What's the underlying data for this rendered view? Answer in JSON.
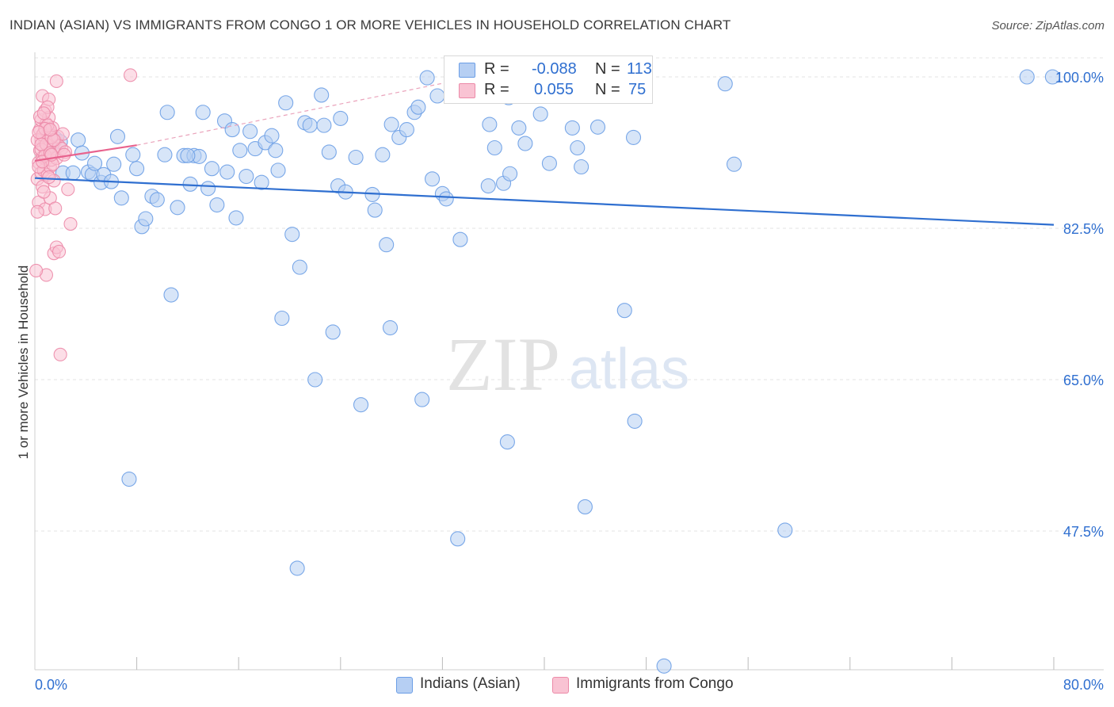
{
  "title": "INDIAN (ASIAN) VS IMMIGRANTS FROM CONGO 1 OR MORE VEHICLES IN HOUSEHOLD CORRELATION CHART",
  "source": "Source: ZipAtlas.com",
  "watermark": {
    "zip": "ZIP",
    "atlas": "atlas"
  },
  "legend": {
    "r_label": "R =",
    "n_label": "N =",
    "rows": [
      {
        "r": "-0.088",
        "n": "113",
        "fill": "#b6cff3",
        "stroke": "#6b9ee6"
      },
      {
        "r": "0.055",
        "n": "75",
        "fill": "#f9c3d3",
        "stroke": "#ec8aa8"
      }
    ]
  },
  "chart_data": {
    "type": "scatter",
    "title": "INDIAN (ASIAN) VS IMMIGRANTS FROM CONGO 1 OR MORE VEHICLES IN HOUSEHOLD CORRELATION CHART",
    "xlabel": "",
    "ylabel": "1 or more Vehicles in Household",
    "xlim": [
      0,
      80
    ],
    "ylim": [
      30.5,
      102.2
    ],
    "x_tick_labels": [
      {
        "value": 0,
        "label": "0.0%"
      },
      {
        "value": 80,
        "label": "80.0%"
      }
    ],
    "y_tick_labels": [
      {
        "value": 100,
        "label": "100.0%"
      },
      {
        "value": 82.5,
        "label": "82.5%"
      },
      {
        "value": 65,
        "label": "65.0%"
      },
      {
        "value": 47.5,
        "label": "47.5%"
      }
    ],
    "grid": true,
    "series": [
      {
        "name": "Indians (Asian)",
        "color": "#6b9ee6",
        "fill": "#b6cff3",
        "trend": {
          "x": [
            0,
            80
          ],
          "y": [
            88.3,
            82.9
          ],
          "color": "#2f6fd0",
          "dashed_extension": false
        },
        "points": [
          [
            1.0,
            93.3
          ],
          [
            1.3,
            92.1
          ],
          [
            1.6,
            92.9
          ],
          [
            2.0,
            92.5
          ],
          [
            2.2,
            88.9
          ],
          [
            3.0,
            88.9
          ],
          [
            3.4,
            92.7
          ],
          [
            3.7,
            91.2
          ],
          [
            4.2,
            89.0
          ],
          [
            4.5,
            88.7
          ],
          [
            4.7,
            90.0
          ],
          [
            5.2,
            87.8
          ],
          [
            5.4,
            88.7
          ],
          [
            6.2,
            89.9
          ],
          [
            6.5,
            93.1
          ],
          [
            6.8,
            86.0
          ],
          [
            7.7,
            91.0
          ],
          [
            8.0,
            89.4
          ],
          [
            8.4,
            82.7
          ],
          [
            8.7,
            83.6
          ],
          [
            9.2,
            86.2
          ],
          [
            9.6,
            85.8
          ],
          [
            10.2,
            91.0
          ],
          [
            10.4,
            95.9
          ],
          [
            10.7,
            74.8
          ],
          [
            11.2,
            84.9
          ],
          [
            11.7,
            90.9
          ],
          [
            12.2,
            87.6
          ],
          [
            12.5,
            90.9
          ],
          [
            12.9,
            90.8
          ],
          [
            13.2,
            95.9
          ],
          [
            13.6,
            87.1
          ],
          [
            13.9,
            89.4
          ],
          [
            14.3,
            85.2
          ],
          [
            14.9,
            94.9
          ],
          [
            15.1,
            89.0
          ],
          [
            15.5,
            93.9
          ],
          [
            15.8,
            83.7
          ],
          [
            16.1,
            91.5
          ],
          [
            16.6,
            88.5
          ],
          [
            16.9,
            93.7
          ],
          [
            17.3,
            91.7
          ],
          [
            17.8,
            87.8
          ],
          [
            18.1,
            92.4
          ],
          [
            18.6,
            93.2
          ],
          [
            19.1,
            89.2
          ],
          [
            19.4,
            72.1
          ],
          [
            19.7,
            97.0
          ],
          [
            20.2,
            81.8
          ],
          [
            20.8,
            78.0
          ],
          [
            21.2,
            94.7
          ],
          [
            21.6,
            94.4
          ],
          [
            22.0,
            65.0
          ],
          [
            22.5,
            97.9
          ],
          [
            22.7,
            94.4
          ],
          [
            23.1,
            91.3
          ],
          [
            23.4,
            70.5
          ],
          [
            23.8,
            87.4
          ],
          [
            24.0,
            95.2
          ],
          [
            24.4,
            86.7
          ],
          [
            25.2,
            90.7
          ],
          [
            25.6,
            62.1
          ],
          [
            26.5,
            86.4
          ],
          [
            26.7,
            84.6
          ],
          [
            27.3,
            91.0
          ],
          [
            27.6,
            80.6
          ],
          [
            27.9,
            71.0
          ],
          [
            28.0,
            94.5
          ],
          [
            28.6,
            93.0
          ],
          [
            29.2,
            93.9
          ],
          [
            29.8,
            95.9
          ],
          [
            30.1,
            96.5
          ],
          [
            30.4,
            62.7
          ],
          [
            30.8,
            99.9
          ],
          [
            31.2,
            88.2
          ],
          [
            31.6,
            97.8
          ],
          [
            32.0,
            86.5
          ],
          [
            32.3,
            85.9
          ],
          [
            33.2,
            46.6
          ],
          [
            33.4,
            81.2
          ],
          [
            35.6,
            87.4
          ],
          [
            35.7,
            94.5
          ],
          [
            36.1,
            91.8
          ],
          [
            36.8,
            87.7
          ],
          [
            37.1,
            57.8
          ],
          [
            37.2,
            97.6
          ],
          [
            37.3,
            88.8
          ],
          [
            38.0,
            94.1
          ],
          [
            38.5,
            92.3
          ],
          [
            39.7,
            95.7
          ],
          [
            40.4,
            90.0
          ],
          [
            42.2,
            94.1
          ],
          [
            42.6,
            91.8
          ],
          [
            42.9,
            89.6
          ],
          [
            43.2,
            50.3
          ],
          [
            44.2,
            94.2
          ],
          [
            45.6,
            100.0
          ],
          [
            46.3,
            73.0
          ],
          [
            47.0,
            93.0
          ],
          [
            47.1,
            60.2
          ],
          [
            49.4,
            31.9
          ],
          [
            54.2,
            99.2
          ],
          [
            54.9,
            89.9
          ],
          [
            58.9,
            47.6
          ],
          [
            77.9,
            100.0
          ],
          [
            79.9,
            100.0
          ],
          [
            7.4,
            53.5
          ],
          [
            20.6,
            43.2
          ],
          [
            12.0,
            90.9
          ],
          [
            18.9,
            91.5
          ],
          [
            6.0,
            87.9
          ]
        ]
      },
      {
        "name": "Immigrants from Congo",
        "color": "#ec8aa8",
        "fill": "#f9c3d3",
        "trend": {
          "x": [
            0,
            8
          ],
          "y": [
            90.3,
            92.1
          ],
          "color": "#e8638e",
          "dashed_extension": true,
          "extension_to": {
            "x": 33.5,
            "y": 99.7
          }
        },
        "points": [
          [
            0.2,
            88.2
          ],
          [
            0.3,
            90.1
          ],
          [
            0.3,
            85.5
          ],
          [
            0.4,
            93.9
          ],
          [
            0.4,
            91.5
          ],
          [
            0.5,
            92.8
          ],
          [
            0.5,
            88.9
          ],
          [
            0.5,
            95.0
          ],
          [
            0.6,
            90.7
          ],
          [
            0.6,
            87.3
          ],
          [
            0.6,
            97.8
          ],
          [
            0.7,
            93.5
          ],
          [
            0.7,
            91.9
          ],
          [
            0.7,
            89.2
          ],
          [
            0.8,
            96.1
          ],
          [
            0.8,
            92.4
          ],
          [
            0.8,
            84.7
          ],
          [
            0.9,
            90.5
          ],
          [
            0.9,
            94.6
          ],
          [
            0.9,
            77.1
          ],
          [
            1.0,
            92.9
          ],
          [
            1.0,
            88.7
          ],
          [
            1.0,
            91.1
          ],
          [
            1.1,
            93.8
          ],
          [
            1.1,
            95.3
          ],
          [
            1.1,
            97.4
          ],
          [
            1.2,
            89.6
          ],
          [
            1.2,
            92.0
          ],
          [
            1.2,
            86.0
          ],
          [
            1.3,
            93.2
          ],
          [
            1.3,
            90.4
          ],
          [
            1.4,
            94.1
          ],
          [
            1.4,
            91.7
          ],
          [
            1.5,
            88.0
          ],
          [
            1.5,
            79.6
          ],
          [
            1.6,
            92.6
          ],
          [
            1.6,
            84.8
          ],
          [
            1.7,
            90.6
          ],
          [
            1.7,
            99.5
          ],
          [
            1.7,
            80.3
          ],
          [
            1.8,
            93.1
          ],
          [
            1.9,
            92.0
          ],
          [
            1.9,
            79.8
          ],
          [
            2.0,
            67.9
          ],
          [
            2.1,
            91.7
          ],
          [
            2.2,
            93.4
          ],
          [
            2.4,
            91.3
          ],
          [
            2.6,
            87.0
          ],
          [
            2.8,
            83.0
          ],
          [
            7.5,
            100.2
          ],
          [
            0.1,
            77.6
          ],
          [
            0.2,
            84.4
          ],
          [
            0.2,
            92.7
          ],
          [
            0.3,
            89.6
          ],
          [
            0.4,
            95.4
          ],
          [
            0.5,
            91.6
          ],
          [
            0.6,
            93.3
          ],
          [
            0.7,
            86.7
          ],
          [
            0.8,
            90.9
          ],
          [
            0.9,
            92.2
          ],
          [
            1.0,
            94.4
          ],
          [
            1.1,
            88.4
          ],
          [
            1.2,
            91.2
          ],
          [
            1.3,
            93.0
          ],
          [
            1.4,
            89.9
          ],
          [
            1.5,
            92.7
          ],
          [
            1.0,
            96.5
          ],
          [
            0.5,
            92.2
          ],
          [
            0.6,
            90.2
          ],
          [
            0.8,
            94.0
          ],
          [
            1.3,
            91.0
          ],
          [
            2.3,
            91.0
          ],
          [
            0.3,
            93.6
          ],
          [
            0.7,
            95.8
          ],
          [
            1.2,
            93.9
          ]
        ]
      }
    ]
  }
}
